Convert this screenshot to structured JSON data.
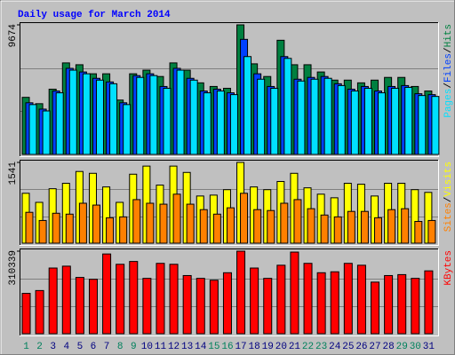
{
  "chart_data": [
    {
      "type": "bar",
      "title": "Daily usage for March 2014",
      "ylim": [
        0,
        9674
      ],
      "yticks": [
        9674
      ],
      "legend_separator": "/",
      "series": [
        {
          "name": "Hits",
          "color": "#008040",
          "values": [
            4262,
            3788,
            4871,
            6833,
            6697,
            6021,
            6021,
            4059,
            6021,
            6291,
            5818,
            6833,
            6291,
            5344,
            5074,
            4938,
            9674,
            6765,
            5818,
            8524,
            6697,
            6697,
            6156,
            5547,
            5547,
            5344,
            5547,
            5750,
            5750,
            5074,
            4736
          ]
        },
        {
          "name": "Files",
          "color": "#0040FF",
          "values": [
            3856,
            3382,
            4735,
            6427,
            6156,
            5682,
            5412,
            3856,
            5885,
            6021,
            5073,
            6427,
            5682,
            4735,
            4871,
            4600,
            8592,
            6021,
            5073,
            7306,
            5615,
            5750,
            5818,
            5276,
            4871,
            5073,
            4735,
            5073,
            5141,
            4532,
            4465
          ]
        },
        {
          "name": "Pages",
          "color": "#00E0FF",
          "values": [
            3721,
            3247,
            4600,
            6292,
            6021,
            5547,
            5277,
            3721,
            5750,
            5886,
            4938,
            6292,
            5547,
            4600,
            4736,
            4465,
            7306,
            5615,
            4938,
            7171,
            5480,
            5615,
            5683,
            5141,
            4736,
            4938,
            4600,
            4938,
            5006,
            4397,
            4330
          ]
        }
      ]
    },
    {
      "type": "bar",
      "ylim": [
        0,
        1541
      ],
      "yticks": [
        1541
      ],
      "legend_separator": "/",
      "series": [
        {
          "name": "Visits",
          "color": "#FFFF00",
          "values": [
            952,
            779,
            1039,
            1143,
            1368,
            1333,
            1073,
            779,
            1316,
            1471,
            1108,
            1471,
            1350,
            900,
            917,
            1021,
            1541,
            1073,
            1021,
            1177,
            1333,
            1056,
            935,
            866,
            1143,
            1125,
            900,
            1143,
            1143,
            1021,
            969
          ]
        },
        {
          "name": "Sites",
          "color": "#FF8000",
          "values": [
            589,
            433,
            571,
            554,
            762,
            727,
            485,
            502,
            831,
            762,
            744,
            935,
            744,
            640,
            554,
            675,
            952,
            640,
            623,
            762,
            831,
            658,
            537,
            502,
            606,
            606,
            485,
            640,
            658,
            415,
            433
          ]
        }
      ]
    },
    {
      "type": "bar",
      "ylim": [
        0,
        310339
      ],
      "yticks": [
        310339
      ],
      "categories": [
        "1",
        "2",
        "3",
        "4",
        "5",
        "6",
        "7",
        "8",
        "9",
        "10",
        "11",
        "12",
        "13",
        "14",
        "15",
        "16",
        "17",
        "18",
        "19",
        "20",
        "21",
        "22",
        "23",
        "24",
        "25",
        "26",
        "27",
        "28",
        "29",
        "30",
        "31"
      ],
      "category_colors": [
        "#00805C",
        "#00805C",
        "#000080",
        "#000080",
        "#000080",
        "#000080",
        "#000080",
        "#00805C",
        "#00805C",
        "#000080",
        "#000080",
        "#000080",
        "#000080",
        "#000080",
        "#00805C",
        "#00805C",
        "#000080",
        "#000080",
        "#000080",
        "#000080",
        "#000080",
        "#00805C",
        "#00805C",
        "#000080",
        "#000080",
        "#000080",
        "#000080",
        "#000080",
        "#00805C",
        "#00805C",
        "#000080"
      ],
      "series": [
        {
          "name": "KBytes",
          "color": "#FF0000",
          "values": [
            151661,
            162242,
            246890,
            253944,
            211620,
            204566,
            299795,
            260998,
            271579,
            208093,
            264525,
            260998,
            218674,
            208093,
            201039,
            229255,
            310339,
            246890,
            208093,
            257471,
            306849,
            264525,
            229255,
            232782,
            264525,
            257471,
            193985,
            218674,
            222201,
            208093,
            236309
          ]
        }
      ]
    }
  ]
}
